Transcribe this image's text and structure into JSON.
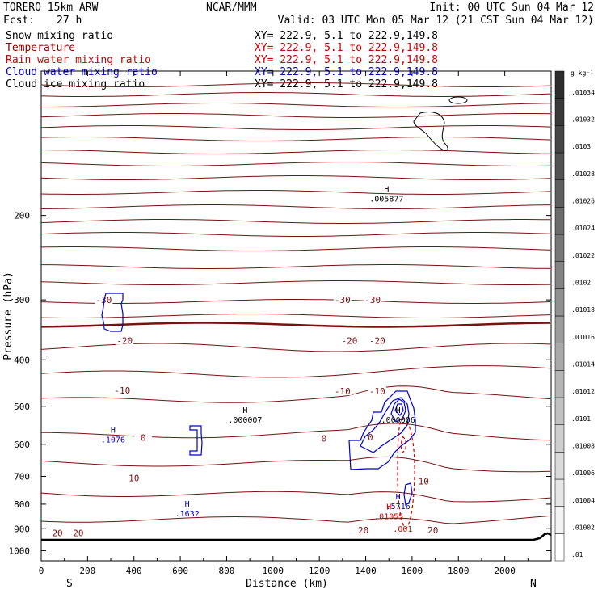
{
  "header": {
    "model": "TORERO  15km ARW",
    "org": "NCAR/MMM",
    "init": "Init: 00 UTC Sun 04 Mar 12",
    "fcst_label": "Fcst:",
    "fcst_value": "27 h",
    "valid": "Valid: 03 UTC Mon 05 Mar 12 (21 CST Sun 04 Mar 12)"
  },
  "legend": [
    {
      "label": "Snow mixing ratio",
      "xy": "XY= 222.9,  5.1 to 222.9,149.8",
      "color": "#000000"
    },
    {
      "label": "Temperature",
      "xy": "XY= 222.9,  5.1 to 222.9,149.8",
      "color": "#8b0000"
    },
    {
      "label": "Rain water mixing ratio",
      "xy": "XY= 222.9,  5.1 to 222.9,149.8",
      "color": "#cc0000"
    },
    {
      "label": "Cloud water mixing ratio",
      "xy": "XY= 222.9,  5.1 to 222.9,149.8",
      "color": "#0000cc"
    },
    {
      "label": "Cloud ice mixing ratio",
      "xy": "XY= 222.9,  5.1 to 222.9,149.8",
      "color": "#000000"
    }
  ],
  "chart_data": {
    "type": "cross-section contour",
    "xlabel": "Distance (km)",
    "ylabel": "Pressure (hPa)",
    "x_ticks": [
      0,
      200,
      400,
      600,
      800,
      1000,
      1200,
      1400,
      1600,
      1800,
      2000
    ],
    "xlim": [
      0,
      2200
    ],
    "y_ticks": [
      200,
      300,
      400,
      500,
      600,
      700,
      800,
      900,
      1000
    ],
    "ylim": [
      1050,
      100
    ],
    "y_scale": "log",
    "endpoints": {
      "left": "S",
      "right": "N"
    },
    "colorbar": {
      "unit": "g kg⁻¹",
      "ticks": [
        ".01",
        ".01002",
        ".01004",
        ".01006",
        ".01008",
        ".0101",
        ".01012",
        ".01014",
        ".01016",
        ".01018",
        ".0102",
        ".01022",
        ".01024",
        ".01026",
        ".01028",
        ".0103",
        ".01032",
        ".01034"
      ]
    },
    "temperature_labels": [
      {
        "text": "-30",
        "x": 270,
        "p": 300
      },
      {
        "text": "-30",
        "x": 1300,
        "p": 300
      },
      {
        "text": "-30",
        "x": 1430,
        "p": 300
      },
      {
        "text": "-20",
        "x": 360,
        "p": 365
      },
      {
        "text": "-20",
        "x": 1330,
        "p": 365
      },
      {
        "text": "-20",
        "x": 1450,
        "p": 365
      },
      {
        "text": "-10",
        "x": 350,
        "p": 463
      },
      {
        "text": "-10",
        "x": 1300,
        "p": 465
      },
      {
        "text": "-10",
        "x": 1450,
        "p": 465
      },
      {
        "text": "0",
        "x": 440,
        "p": 581
      },
      {
        "text": "0",
        "x": 1220,
        "p": 583
      },
      {
        "text": "0",
        "x": 1420,
        "p": 580
      },
      {
        "text": "10",
        "x": 400,
        "p": 706
      },
      {
        "text": "10",
        "x": 1650,
        "p": 716
      },
      {
        "text": "20",
        "x": 70,
        "p": 918
      },
      {
        "text": "20",
        "x": 160,
        "p": 918
      },
      {
        "text": "20",
        "x": 1390,
        "p": 906
      },
      {
        "text": "20",
        "x": 1690,
        "p": 906
      }
    ],
    "annotations": [
      {
        "letter": "H",
        "value": ".005877",
        "x": 1490,
        "p": 185,
        "color": "#000000"
      },
      {
        "letter": "H",
        "value": ".000007",
        "x": 880,
        "p": 535,
        "color": "#000000"
      },
      {
        "letter": "H",
        "value": ".000006",
        "x": 1540,
        "p": 535,
        "color": "#000000"
      },
      {
        "letter": "H",
        "value": ".1076",
        "x": 310,
        "p": 588,
        "color": "#0000cc"
      },
      {
        "letter": "H",
        "value": ".1632",
        "x": 630,
        "p": 838,
        "color": "#0000cc"
      },
      {
        "letter": "H",
        "value": ".5716",
        "x": 1540,
        "p": 810,
        "color": "#0000cc"
      },
      {
        "letter": "H",
        "value": ".01055",
        "x": 1500,
        "p": 850,
        "color": "#cc0000"
      },
      {
        "letter": "",
        "value": ".001",
        "x": 1560,
        "p": 902,
        "color": "#cc0000"
      }
    ]
  }
}
